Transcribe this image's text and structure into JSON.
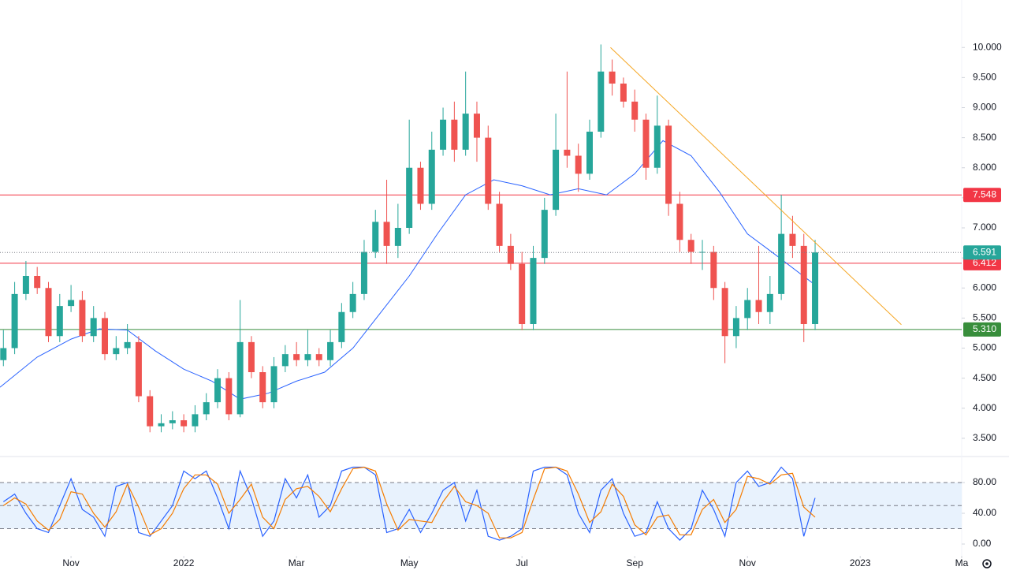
{
  "chart_data": {
    "type": "candlestick",
    "x": [
      -1.2,
      -1,
      -0.8,
      -0.6,
      -0.4,
      -0.2,
      0,
      0.2,
      0.4,
      0.6,
      0.8,
      1,
      1.2,
      1.4,
      1.6,
      1.8,
      2,
      2.2,
      2.4,
      2.6,
      2.8,
      3,
      3.2,
      3.4,
      3.6,
      3.8,
      4,
      4.2,
      4.4,
      4.6,
      4.8,
      5,
      5.2,
      5.4,
      5.6,
      5.8,
      6,
      6.2,
      6.4,
      6.6,
      6.8,
      7,
      7.2,
      7.4,
      7.6,
      7.8,
      8,
      8.2,
      8.4,
      8.6,
      8.8,
      9,
      9.2,
      9.4,
      9.6,
      9.8,
      10,
      10.2,
      10.4,
      10.6,
      10.8,
      11,
      11.2,
      11.4,
      11.6,
      11.8,
      12,
      12.2,
      12.4,
      12.6,
      12.8,
      13,
      13.2
    ],
    "open": [
      4.8,
      5.0,
      5.9,
      6.2,
      6.0,
      5.2,
      5.7,
      5.8,
      5.2,
      5.5,
      4.9,
      5.0,
      5.1,
      4.2,
      3.7,
      3.75,
      3.8,
      3.7,
      3.9,
      4.1,
      4.5,
      3.9,
      5.1,
      4.6,
      4.1,
      4.7,
      4.9,
      4.8,
      4.9,
      4.8,
      5.1,
      5.6,
      5.9,
      6.6,
      7.1,
      6.7,
      7.0,
      8.0,
      7.4,
      8.3,
      8.8,
      8.3,
      8.9,
      8.5,
      7.4,
      6.7,
      6.4,
      5.4,
      6.5,
      7.3,
      8.3,
      8.2,
      7.9,
      8.6,
      9.6,
      9.4,
      9.1,
      8.8,
      8.0,
      8.7,
      7.4,
      6.8,
      6.6,
      6.6,
      6.0,
      5.2,
      5.5,
      5.8,
      5.6,
      5.9,
      6.9,
      6.7,
      5.4
    ],
    "high": [
      5.3,
      6.1,
      6.45,
      6.35,
      6.1,
      5.9,
      6.05,
      5.95,
      5.7,
      5.6,
      5.2,
      5.4,
      5.2,
      4.3,
      3.9,
      3.95,
      3.9,
      4.05,
      4.25,
      4.65,
      4.6,
      5.8,
      5.2,
      4.7,
      4.85,
      5.05,
      5.1,
      5.3,
      5.0,
      5.3,
      5.75,
      6.1,
      6.8,
      7.3,
      7.8,
      7.4,
      8.8,
      8.1,
      8.6,
      9.0,
      9.1,
      9.6,
      9.1,
      8.7,
      7.6,
      6.9,
      6.6,
      6.7,
      7.5,
      8.9,
      9.6,
      8.4,
      8.8,
      10.05,
      9.8,
      9.5,
      9.3,
      8.9,
      9.2,
      8.8,
      7.6,
      6.9,
      6.8,
      6.7,
      6.1,
      5.7,
      6.0,
      6.7,
      6.2,
      7.55,
      7.2,
      6.9,
      6.8
    ],
    "low": [
      4.7,
      4.9,
      5.8,
      5.9,
      5.1,
      5.1,
      5.6,
      5.1,
      5.1,
      4.8,
      4.8,
      4.9,
      4.1,
      3.6,
      3.6,
      3.65,
      3.6,
      3.6,
      3.8,
      4.0,
      3.8,
      3.85,
      4.5,
      4.0,
      4.0,
      4.6,
      4.7,
      4.7,
      4.7,
      4.7,
      5.0,
      5.5,
      5.8,
      6.5,
      6.4,
      6.5,
      6.9,
      7.3,
      7.3,
      8.2,
      8.1,
      8.2,
      8.1,
      7.3,
      6.6,
      6.3,
      5.3,
      5.3,
      6.4,
      7.2,
      8.0,
      7.6,
      7.8,
      8.5,
      9.2,
      9.0,
      8.6,
      7.8,
      7.9,
      7.2,
      6.6,
      6.4,
      6.3,
      5.8,
      4.75,
      5.0,
      5.3,
      5.4,
      5.4,
      5.8,
      6.5,
      5.1,
      5.3
    ],
    "close": [
      5.0,
      5.9,
      6.2,
      6.0,
      5.2,
      5.7,
      5.8,
      5.2,
      5.5,
      4.9,
      5.0,
      5.1,
      4.2,
      3.7,
      3.75,
      3.8,
      3.7,
      3.9,
      4.1,
      4.5,
      3.9,
      5.1,
      4.6,
      4.1,
      4.7,
      4.9,
      4.8,
      4.9,
      4.8,
      5.1,
      5.6,
      5.9,
      6.6,
      7.1,
      6.7,
      7.0,
      8.0,
      7.4,
      8.3,
      8.8,
      8.3,
      8.9,
      8.5,
      7.4,
      6.7,
      6.4,
      5.4,
      6.5,
      7.3,
      8.3,
      8.2,
      7.9,
      8.6,
      9.6,
      9.4,
      9.1,
      8.8,
      8.0,
      8.7,
      7.4,
      6.8,
      6.6,
      6.6,
      6.0,
      5.2,
      5.5,
      5.8,
      5.6,
      5.9,
      6.9,
      6.7,
      5.4,
      6.591
    ],
    "up_color": "#26a69a",
    "down_color": "#ef5350",
    "last_color": "#26a69a",
    "xlim": [
      -1.26,
      16.29
    ],
    "xticks": [
      {
        "value": 0,
        "label": "Nov"
      },
      {
        "value": 2,
        "label": "2022"
      },
      {
        "value": 4,
        "label": "Mar"
      },
      {
        "value": 6,
        "label": "May"
      },
      {
        "value": 8,
        "label": "Jul"
      },
      {
        "value": 10,
        "label": "Sep"
      },
      {
        "value": 12,
        "label": "Nov"
      },
      {
        "value": 14,
        "label": "2023"
      },
      {
        "value": 15.8,
        "label": "Ma"
      }
    ],
    "ylim": [
      3.21,
      10.79
    ],
    "yticks": [
      {
        "value": 3.5,
        "label": "3.500"
      },
      {
        "value": 4,
        "label": "4.000"
      },
      {
        "value": 4.5,
        "label": "4.500"
      },
      {
        "value": 5,
        "label": "5.000"
      },
      {
        "value": 5.5,
        "label": "5.500"
      },
      {
        "value": 6,
        "label": "6.000"
      },
      {
        "value": 6.5,
        "label": "6.500"
      },
      {
        "value": 7,
        "label": "7.000"
      },
      {
        "value": 7.5,
        "label": "7.500"
      },
      {
        "value": 8,
        "label": "8.000"
      },
      {
        "value": 8.5,
        "label": "8.500"
      },
      {
        "value": 9,
        "label": "9.000"
      },
      {
        "value": 9.5,
        "label": "9.500"
      },
      {
        "value": 10,
        "label": "10.000"
      }
    ],
    "levels": [
      {
        "value": 7.548,
        "color": "#f23645"
      },
      {
        "value": 6.412,
        "color": "#f23645"
      },
      {
        "value": 5.31,
        "label": "5.310",
        "color": "#388e3c"
      }
    ],
    "moving_average": {
      "color": "#2962ff",
      "x": [
        -1.26,
        -0.6,
        0,
        0.5,
        1,
        1.5,
        2,
        2.5,
        3,
        3.5,
        4,
        4.5,
        5,
        5.5,
        6,
        6.5,
        7,
        7.5,
        8,
        8.5,
        9,
        9.5,
        10,
        10.5,
        11,
        11.5,
        12,
        12.5,
        13.2
      ],
      "values": [
        4.35,
        4.85,
        5.15,
        5.32,
        5.3,
        4.95,
        4.65,
        4.45,
        4.15,
        4.25,
        4.45,
        4.6,
        5.0,
        5.6,
        6.2,
        6.9,
        7.55,
        7.8,
        7.7,
        7.55,
        7.65,
        7.55,
        7.9,
        8.45,
        8.2,
        7.6,
        6.9,
        6.55,
        6.05
      ]
    },
    "trendline": {
      "color": "#f5a623",
      "x": [
        9.57,
        14.73
      ],
      "values": [
        10.0,
        5.39
      ]
    },
    "oscillator": {
      "ylim": [
        -15.4,
        110.8
      ],
      "yticks": [
        {
          "value": 0,
          "label": "0.00"
        },
        {
          "value": 40,
          "label": "40.00"
        },
        {
          "value": 80,
          "label": "80.00"
        }
      ],
      "levels": [
        20,
        50,
        80
      ],
      "band_color": "#e8f2fd",
      "series": [
        {
          "color": "#2962ff",
          "values": [
            55,
            65,
            40,
            20,
            15,
            50,
            85,
            45,
            35,
            10,
            75,
            80,
            15,
            10,
            30,
            50,
            95,
            85,
            95,
            60,
            20,
            95,
            60,
            10,
            30,
            85,
            60,
            90,
            35,
            50,
            95,
            100,
            100,
            90,
            15,
            20,
            45,
            15,
            40,
            70,
            80,
            30,
            70,
            10,
            5,
            10,
            20,
            95,
            100,
            100,
            90,
            40,
            15,
            70,
            85,
            40,
            10,
            15,
            55,
            20,
            5,
            20,
            70,
            45,
            10,
            80,
            95,
            75,
            80,
            100,
            85,
            10,
            60
          ]
        },
        {
          "color": "#f57c00",
          "values": [
            50,
            60,
            52,
            30,
            18,
            32,
            68,
            65,
            40,
            22,
            42,
            78,
            48,
            12,
            20,
            40,
            72,
            90,
            90,
            78,
            40,
            58,
            78,
            35,
            20,
            58,
            72,
            75,
            62,
            42,
            72,
            98,
            100,
            95,
            52,
            18,
            32,
            30,
            28,
            55,
            75,
            55,
            50,
            40,
            8,
            8,
            15,
            58,
            98,
            100,
            95,
            65,
            28,
            42,
            78,
            62,
            25,
            12,
            35,
            38,
            12,
            12,
            45,
            58,
            28,
            45,
            88,
            85,
            78,
            90,
            92,
            48,
            35
          ]
        }
      ]
    }
  }
}
